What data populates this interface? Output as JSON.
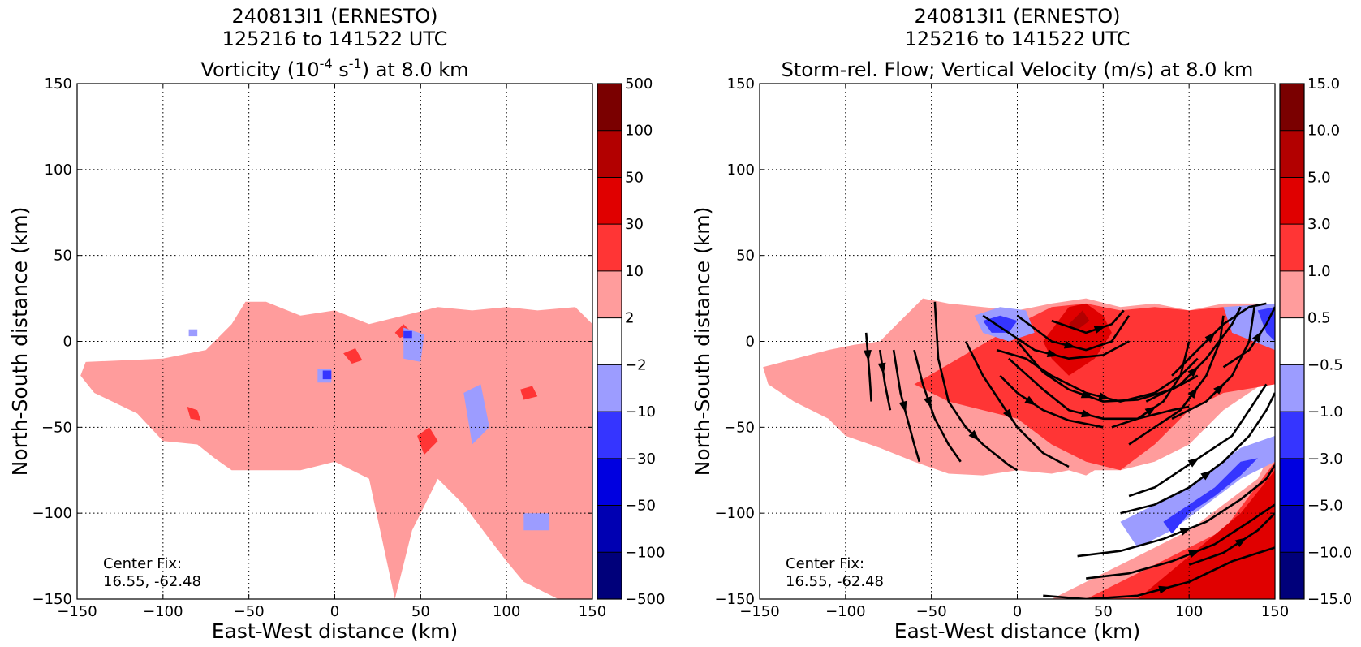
{
  "chart_data": [
    {
      "type": "heatmap",
      "title_lines": [
        "240813I1 (ERNESTO)",
        "125216 to 141522 UTC"
      ],
      "title_var": {
        "pre": "Vorticity (10",
        "exp1": "-4",
        "mid": " s",
        "exp2": "-1",
        "post": ") at 8.0 km"
      },
      "xlabel": "East-West distance (km)",
      "ylabel": "North-South distance (km)",
      "xlim": [
        -150,
        150
      ],
      "ylim": [
        -150,
        150
      ],
      "xticks": [
        -150,
        -100,
        -50,
        0,
        50,
        100,
        150
      ],
      "yticks": [
        -150,
        -100,
        -50,
        0,
        50,
        100,
        150
      ],
      "grid": true,
      "annotation": [
        "Center Fix:",
        "16.55, -62.48"
      ],
      "colorbar": {
        "levels": [
          "500",
          "100",
          "50",
          "30",
          "10",
          "2",
          "−2",
          "−10",
          "−30",
          "−50",
          "−100",
          "−500"
        ],
        "colors": [
          "#7a0000",
          "#b20000",
          "#e00000",
          "#ff3535",
          "#ff9c9c",
          "#ffffff",
          "#9c9cff",
          "#3535ff",
          "#0000e0",
          "#0000b2",
          "#00007a"
        ]
      },
      "field_regions": [
        {
          "value": 2,
          "x": [
            -145,
            -100,
            -75,
            -60,
            -52,
            -40,
            -20,
            0,
            20,
            40,
            60,
            80,
            100,
            118,
            140,
            150,
            150,
            130,
            110,
            100,
            90,
            75,
            60,
            45,
            35,
            20,
            0,
            -20,
            -40,
            -60,
            -70,
            -80,
            -100,
            -115,
            -140,
            -148
          ],
          "y": [
            -12,
            -10,
            -5,
            10,
            23,
            23,
            15,
            18,
            10,
            15,
            20,
            18,
            20,
            18,
            20,
            10,
            -150,
            -150,
            -140,
            -128,
            -115,
            -95,
            -80,
            -110,
            -150,
            -80,
            -70,
            -75,
            -75,
            -75,
            -68,
            -60,
            -58,
            -42,
            -30,
            -20
          ]
        },
        {
          "value": 10,
          "x": [
            35,
            40,
            45,
            38
          ],
          "y": [
            5,
            10,
            5,
            2
          ]
        },
        {
          "value": 10,
          "x": [
            5,
            12,
            16,
            10
          ],
          "y": [
            -7,
            -4,
            -11,
            -13
          ]
        },
        {
          "value": 10,
          "x": [
            48,
            55,
            60,
            52
          ],
          "y": [
            -55,
            -50,
            -58,
            -66
          ]
        },
        {
          "value": 10,
          "x": [
            -86,
            -80,
            -78,
            -84
          ],
          "y": [
            -38,
            -40,
            -46,
            -45
          ]
        },
        {
          "value": 10,
          "x": [
            108,
            115,
            118,
            110
          ],
          "y": [
            -28,
            -26,
            -32,
            -34
          ]
        },
        {
          "value": -2,
          "x": [
            40,
            52,
            50,
            40
          ],
          "y": [
            8,
            4,
            -12,
            -10
          ]
        },
        {
          "value": -2,
          "x": [
            75,
            85,
            90,
            80
          ],
          "y": [
            -30,
            -25,
            -50,
            -60
          ]
        },
        {
          "value": -2,
          "x": [
            110,
            125,
            125,
            110
          ],
          "y": [
            -100,
            -100,
            -110,
            -110
          ]
        },
        {
          "value": -2,
          "x": [
            -10,
            -2,
            -2,
            -10
          ],
          "y": [
            -16,
            -16,
            -24,
            -24
          ]
        },
        {
          "value": -2,
          "x": [
            -85,
            -80,
            -80,
            -85
          ],
          "y": [
            7,
            7,
            3,
            3
          ]
        },
        {
          "value": -10,
          "x": [
            -7,
            -2,
            -2,
            -7
          ],
          "y": [
            -17,
            -17,
            -22,
            -22
          ]
        },
        {
          "value": -10,
          "x": [
            40,
            45,
            45,
            40
          ],
          "y": [
            6,
            6,
            2,
            2
          ]
        }
      ]
    },
    {
      "type": "heatmap",
      "title_lines": [
        "240813I1 (ERNESTO)",
        "125216 to 141522 UTC"
      ],
      "title_var": {
        "pre": "Storm-rel. Flow; Vertical Velocity (m/s) at 8.0 km",
        "exp1": "",
        "mid": "",
        "exp2": "",
        "post": ""
      },
      "xlabel": "East-West distance (km)",
      "ylabel": "North-South distance (km)",
      "xlim": [
        -150,
        150
      ],
      "ylim": [
        -150,
        150
      ],
      "xticks": [
        -150,
        -100,
        -50,
        0,
        50,
        100,
        150
      ],
      "yticks": [
        -150,
        -100,
        -50,
        0,
        50,
        100,
        150
      ],
      "grid": true,
      "annotation": [
        "Center Fix:",
        "16.55, -62.48"
      ],
      "colorbar": {
        "levels": [
          "15.0",
          "10.0",
          "5.0",
          "3.0",
          "1.0",
          "0.5",
          "−0.5",
          "−1.0",
          "−3.0",
          "−5.0",
          "−10.0",
          "−15.0"
        ],
        "colors": [
          "#7a0000",
          "#b20000",
          "#e00000",
          "#ff3535",
          "#ff9c9c",
          "#ffffff",
          "#9c9cff",
          "#3535ff",
          "#0000e0",
          "#0000b2",
          "#00007a"
        ]
      },
      "field_regions": [
        {
          "value": 0.5,
          "x": [
            -148,
            -110,
            -95,
            -80,
            -70,
            -60,
            -55,
            -40,
            -20,
            0,
            20,
            40,
            60,
            80,
            100,
            120,
            140,
            150,
            150,
            120,
            100,
            80,
            60,
            45,
            40,
            30,
            20,
            0,
            -20,
            -40,
            -60,
            -80,
            -100,
            -110,
            -130,
            -145
          ],
          "y": [
            -15,
            -5,
            -2,
            0,
            10,
            20,
            25,
            22,
            20,
            18,
            22,
            25,
            20,
            22,
            18,
            22,
            22,
            20,
            -20,
            -40,
            -60,
            -70,
            -75,
            -75,
            -78,
            -75,
            -77,
            -75,
            -78,
            -77,
            -70,
            -62,
            -55,
            -45,
            -35,
            -25
          ]
        },
        {
          "value": 1.0,
          "x": [
            0,
            20,
            40,
            60,
            80,
            100,
            120,
            140,
            150,
            150,
            120,
            100,
            80,
            60,
            40,
            20,
            0,
            -20,
            -40,
            -60
          ],
          "y": [
            10,
            20,
            22,
            18,
            20,
            18,
            20,
            20,
            10,
            -25,
            -30,
            -40,
            -60,
            -75,
            -70,
            -60,
            -45,
            -40,
            -35,
            -25
          ]
        },
        {
          "value": 3.0,
          "x": [
            15,
            30,
            40,
            50,
            55,
            45,
            30,
            20
          ],
          "y": [
            0,
            20,
            22,
            15,
            5,
            -10,
            -20,
            -10
          ]
        },
        {
          "value": 5.0,
          "x": [
            30,
            38,
            42,
            34
          ],
          "y": [
            10,
            18,
            12,
            6
          ]
        },
        {
          "value": 0.5,
          "x": [
            20,
            60,
            100,
            140,
            150,
            150,
            100,
            60,
            35,
            20
          ],
          "y": [
            -150,
            -130,
            -110,
            -80,
            -60,
            -150,
            -150,
            -150,
            -150,
            -150
          ]
        },
        {
          "value": 1.0,
          "x": [
            40,
            80,
            120,
            150,
            150,
            110,
            70,
            45
          ],
          "y": [
            -150,
            -130,
            -110,
            -70,
            -150,
            -150,
            -150,
            -150
          ]
        },
        {
          "value": 3.0,
          "x": [
            70,
            100,
            130,
            150,
            150,
            120,
            90,
            75
          ],
          "y": [
            -150,
            -125,
            -100,
            -75,
            -150,
            -150,
            -150,
            -150
          ]
        },
        {
          "value": -0.5,
          "x": [
            -25,
            -10,
            5,
            10,
            -5,
            -20
          ],
          "y": [
            15,
            20,
            18,
            5,
            0,
            5
          ]
        },
        {
          "value": -1.0,
          "x": [
            -20,
            -10,
            0,
            -5,
            -15
          ],
          "y": [
            12,
            15,
            12,
            5,
            5
          ]
        },
        {
          "value": -0.5,
          "x": [
            60,
            80,
            100,
            130,
            150,
            150,
            130,
            110,
            90,
            70
          ],
          "y": [
            -105,
            -95,
            -85,
            -62,
            -55,
            -70,
            -80,
            -95,
            -110,
            -120
          ]
        },
        {
          "value": -1.0,
          "x": [
            85,
            100,
            115,
            130,
            140,
            130,
            115,
            100,
            90
          ],
          "y": [
            -105,
            -95,
            -85,
            -70,
            -68,
            -78,
            -90,
            -100,
            -112
          ]
        },
        {
          "value": -0.5,
          "x": [
            120,
            150,
            150,
            125
          ],
          "y": [
            20,
            22,
            -5,
            5
          ]
        },
        {
          "value": -1.0,
          "x": [
            140,
            150,
            150,
            145
          ],
          "y": [
            18,
            20,
            0,
            5
          ]
        }
      ],
      "streamlines": [
        {
          "x": [
            -88,
            -86,
            -85
          ],
          "y": [
            5,
            -20,
            -35
          ]
        },
        {
          "x": [
            -80,
            -77,
            -74
          ],
          "y": [
            -5,
            -25,
            -40
          ]
        },
        {
          "x": [
            -72,
            -68,
            -64,
            -60,
            -57
          ],
          "y": [
            -5,
            -30,
            -45,
            -60,
            -70
          ]
        },
        {
          "x": [
            -60,
            -55,
            -48,
            -40,
            -33
          ],
          "y": [
            -5,
            -25,
            -45,
            -60,
            -70
          ]
        },
        {
          "x": [
            -48,
            -46,
            -40,
            -30,
            -20,
            -10,
            -5,
            0
          ],
          "y": [
            23,
            -10,
            -35,
            -50,
            -60,
            -68,
            -72,
            -75
          ]
        },
        {
          "x": [
            -30,
            -20,
            -10,
            0,
            15,
            30
          ],
          "y": [
            0,
            -20,
            -35,
            -50,
            -65,
            -73
          ]
        },
        {
          "x": [
            -10,
            0,
            15,
            30,
            50
          ],
          "y": [
            -20,
            -30,
            -40,
            -46,
            -50
          ]
        },
        {
          "x": [
            -5,
            15,
            30,
            50,
            70,
            90,
            100
          ],
          "y": [
            -10,
            -28,
            -40,
            -45,
            -45,
            -40,
            -38
          ]
        },
        {
          "x": [
            0,
            15,
            30,
            50,
            70,
            90,
            105
          ],
          "y": [
            0,
            -18,
            -28,
            -35,
            -34,
            -28,
            -20
          ]
        },
        {
          "x": [
            -12,
            5,
            20,
            40,
            60,
            80,
            95,
            105
          ],
          "y": [
            -5,
            -10,
            -20,
            -30,
            -35,
            -30,
            -20,
            -10
          ]
        },
        {
          "x": [
            -20,
            -5,
            10,
            30,
            50,
            65
          ],
          "y": [
            15,
            5,
            -5,
            -10,
            -8,
            0
          ]
        },
        {
          "x": [
            0,
            20,
            40,
            55,
            65
          ],
          "y": [
            15,
            0,
            -5,
            0,
            15
          ]
        },
        {
          "x": [
            20,
            40,
            55,
            62
          ],
          "y": [
            12,
            5,
            10,
            18
          ]
        },
        {
          "x": [
            55,
            70,
            85,
            95,
            100
          ],
          "y": [
            -50,
            -45,
            -35,
            -20,
            0
          ]
        },
        {
          "x": [
            65,
            80,
            95,
            110,
            118,
            120
          ],
          "y": [
            -60,
            -50,
            -40,
            -20,
            0,
            15
          ]
        },
        {
          "x": [
            75,
            95,
            110,
            125,
            130
          ],
          "y": [
            -35,
            -25,
            -10,
            10,
            20
          ]
        },
        {
          "x": [
            90,
            110,
            125,
            135,
            138
          ],
          "y": [
            -45,
            -35,
            -20,
            0,
            20
          ]
        },
        {
          "x": [
            90,
            105,
            120,
            135,
            145
          ],
          "y": [
            -20,
            -5,
            10,
            20,
            22
          ]
        },
        {
          "x": [
            120,
            135,
            145,
            150
          ],
          "y": [
            -15,
            -5,
            10,
            20
          ]
        },
        {
          "x": [
            65,
            80,
            95,
            110,
            125,
            135,
            145
          ],
          "y": [
            -90,
            -85,
            -75,
            -65,
            -55,
            -40,
            -25
          ]
        },
        {
          "x": [
            60,
            80,
            100,
            120,
            135,
            145,
            150
          ],
          "y": [
            -100,
            -95,
            -85,
            -70,
            -55,
            -40,
            -30
          ]
        },
        {
          "x": [
            35,
            60,
            85,
            110,
            130,
            145,
            150
          ],
          "y": [
            -125,
            -122,
            -115,
            -105,
            -92,
            -80,
            -72
          ]
        },
        {
          "x": [
            40,
            65,
            90,
            115,
            135,
            150
          ],
          "y": [
            -138,
            -135,
            -128,
            -118,
            -105,
            -95
          ]
        },
        {
          "x": [
            15,
            40,
            70,
            100,
            125,
            150
          ],
          "y": [
            -148,
            -150,
            -148,
            -140,
            -128,
            -120
          ]
        },
        {
          "x": [
            100,
            120,
            140,
            150
          ],
          "y": [
            -130,
            -123,
            -110,
            -100
          ]
        }
      ]
    }
  ]
}
